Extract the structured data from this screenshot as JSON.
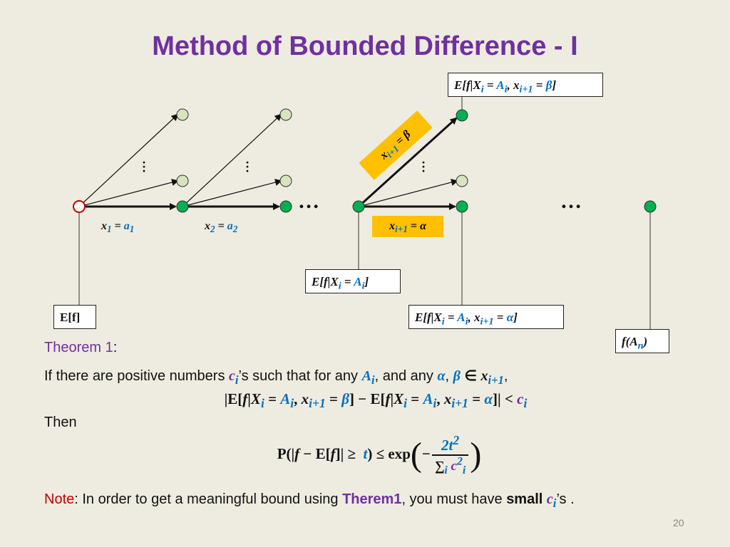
{
  "title": "Method of Bounded Difference - I",
  "diagram": {
    "box_ef": "E[f]",
    "box_ef_xi": "E[f|X",
    "box_top": "E[f|X",
    "box_bottom_right": "E[f|X",
    "box_fan": "f(A",
    "label_x1": "x",
    "label_x2": "x",
    "label_xi1_alpha": "x",
    "label_xi1_beta": "x",
    "ellipsis": "…"
  },
  "theorem": {
    "label": "Theorem 1",
    "colon": ":",
    "line1_a": "If there are positive numbers ",
    "line1_b": "’s such that for any ",
    "line1_c": ", and any ",
    "then": "Then"
  },
  "note": {
    "label": "Note",
    "text_a": ": In order to get a meaningful bound using ",
    "theorem_ref": "Therem1",
    "text_b": ", you must  have ",
    "small": "small",
    "text_c": "’s ."
  },
  "page_number": "20",
  "colors": {
    "title": "#7030a0",
    "accent_blue": "#0070c0",
    "node_green": "#00b050",
    "label_bg": "#ffc000",
    "note_red": "#c00000"
  }
}
